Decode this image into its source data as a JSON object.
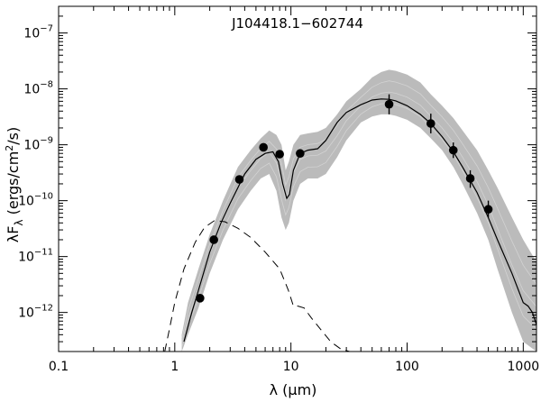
{
  "chart_data": {
    "type": "line",
    "title": "J104418.1−602744",
    "xlabel": {
      "pre": "λ (",
      "mu": "μ",
      "post": "m)"
    },
    "ylabel": {
      "lam": "λF",
      "sub": "λ",
      "mid": " (ergs/cm",
      "sup": "2",
      "post": "/s)"
    },
    "x_scale": "log",
    "y_scale": "log",
    "xlim": [
      0.1,
      1300
    ],
    "ylim": [
      2e-13,
      3e-07
    ],
    "grid": false,
    "legend": "none",
    "x_ticks": [
      {
        "value": 0.1,
        "label": "0.1"
      },
      {
        "value": 1,
        "label": "1"
      },
      {
        "value": 10,
        "label": "10"
      },
      {
        "value": 100,
        "label": "100"
      },
      {
        "value": 1000,
        "label": "1000"
      }
    ],
    "y_ticks": [
      {
        "value": 1e-12,
        "exp": "−12"
      },
      {
        "value": 1e-11,
        "exp": "−11"
      },
      {
        "value": 1e-10,
        "exp": "−10"
      },
      {
        "value": 1e-09,
        "exp": "−9"
      },
      {
        "value": 1e-08,
        "exp": "−8"
      },
      {
        "value": 1e-07,
        "exp": "−7"
      }
    ],
    "colors": {
      "models": "#bbbbbb",
      "fit": "#000000",
      "photosphere": "#000000",
      "points": "#000000"
    },
    "series": [
      {
        "role": "model-envelope",
        "x": [
          1.15,
          1.3,
          1.6,
          2.0,
          2.6,
          3.5,
          4.5,
          5.5,
          6.5,
          7.5,
          8.3,
          9.0,
          9.6,
          10.5,
          12,
          14,
          17,
          20,
          25,
          30,
          40,
          50,
          60,
          70,
          80,
          100,
          130,
          160,
          200,
          250,
          300,
          400,
          500,
          600,
          800,
          1000,
          1300
        ],
        "y_low": [
          2e-13,
          4e-13,
          1.2e-12,
          5e-12,
          2e-11,
          7e-11,
          1.5e-10,
          2.5e-10,
          3e-10,
          1.5e-10,
          5e-11,
          3e-11,
          4e-11,
          1e-10,
          2e-10,
          2.5e-10,
          2.5e-10,
          3e-10,
          6e-10,
          1.2e-09,
          2.5e-09,
          3.2e-09,
          3.5e-09,
          3.5e-09,
          3.3e-09,
          2.8e-09,
          2e-09,
          1.3e-09,
          8e-10,
          4e-10,
          2e-10,
          6e-11,
          2e-11,
          6e-12,
          1e-12,
          3e-13,
          2e-13
        ],
        "y_high": [
          4e-13,
          1.5e-12,
          6e-12,
          2.5e-11,
          1e-10,
          4e-10,
          8e-10,
          1.3e-09,
          1.8e-09,
          1.5e-09,
          1e-09,
          3.5e-10,
          5e-10,
          1e-09,
          1.5e-09,
          1.6e-09,
          1.7e-09,
          2e-09,
          3.5e-09,
          6e-09,
          1e-08,
          1.6e-08,
          2e-08,
          2.2e-08,
          2.1e-08,
          1.8e-08,
          1.3e-08,
          8e-09,
          5e-09,
          3e-09,
          1.8e-09,
          8e-10,
          3.5e-10,
          1.7e-10,
          5e-11,
          2e-11,
          8e-12
        ]
      },
      {
        "role": "best-fit",
        "x": [
          1.2,
          1.4,
          1.6,
          2.0,
          2.5,
          3.0,
          4.0,
          5.0,
          6.0,
          7.0,
          7.8,
          8.5,
          9.2,
          9.7,
          10.5,
          12,
          14,
          17,
          20,
          25,
          30,
          40,
          50,
          60,
          70,
          80,
          100,
          130,
          160,
          200,
          250,
          300,
          400,
          500,
          600,
          800,
          1000,
          1100,
          1200,
          1300
        ],
        "y": [
          3e-13,
          1e-12,
          2.5e-12,
          1.2e-11,
          4e-11,
          9e-11,
          3e-10,
          5.5e-10,
          7e-10,
          7.5e-10,
          5e-10,
          2e-10,
          1.1e-10,
          1.3e-10,
          3.5e-10,
          7e-10,
          8e-10,
          8.5e-10,
          1.2e-09,
          2.5e-09,
          3.8e-09,
          5.2e-09,
          6.3e-09,
          6.6e-09,
          6.5e-09,
          6.1e-09,
          5e-09,
          3.5e-09,
          2.4e-09,
          1.4e-09,
          7.5e-10,
          4e-10,
          1.4e-10,
          5e-11,
          2e-11,
          5e-12,
          1.5e-12,
          1.3e-12,
          1e-12,
          6e-13
        ]
      },
      {
        "role": "photosphere",
        "x": [
          0.82,
          0.9,
          1.0,
          1.2,
          1.5,
          1.8,
          2.2,
          2.7,
          3.5,
          4.5,
          6.0,
          8.0,
          9.5,
          10.5,
          11.5,
          13,
          15,
          18,
          22,
          27,
          32
        ],
        "y": [
          2e-13,
          5e-13,
          1.5e-12,
          6e-12,
          1.8e-11,
          3.3e-11,
          4.4e-11,
          4.2e-11,
          3.2e-11,
          2.2e-11,
          1.2e-11,
          6e-12,
          2.5e-12,
          1.3e-12,
          1.3e-12,
          1.2e-12,
          8e-13,
          5e-13,
          3e-13,
          2.2e-13,
          2e-13
        ]
      }
    ],
    "points": [
      {
        "x": 1.65,
        "y": 1.8e-12,
        "err_lo": 0,
        "err_hi": 0
      },
      {
        "x": 2.17,
        "y": 2e-11,
        "err_lo": 0,
        "err_hi": 0
      },
      {
        "x": 3.6,
        "y": 2.4e-10,
        "err_lo": 0,
        "err_hi": 0
      },
      {
        "x": 5.8,
        "y": 9e-10,
        "err_lo": 0,
        "err_hi": 0
      },
      {
        "x": 8.0,
        "y": 6.8e-10,
        "err_lo": 0,
        "err_hi": 0
      },
      {
        "x": 12.0,
        "y": 7e-10,
        "err_lo": 0,
        "err_hi": 0
      },
      {
        "x": 70,
        "y": 5.3e-09,
        "err_lo": 3.5e-09,
        "err_hi": 8e-09
      },
      {
        "x": 160,
        "y": 2.4e-09,
        "err_lo": 1.6e-09,
        "err_hi": 3.6e-09
      },
      {
        "x": 250,
        "y": 8e-10,
        "err_lo": 5.8e-10,
        "err_hi": 1.1e-09
      },
      {
        "x": 350,
        "y": 2.5e-10,
        "err_lo": 1.7e-10,
        "err_hi": 3.5e-10
      },
      {
        "x": 500,
        "y": 7e-11,
        "err_lo": 5e-11,
        "err_hi": 1e-10
      }
    ]
  }
}
